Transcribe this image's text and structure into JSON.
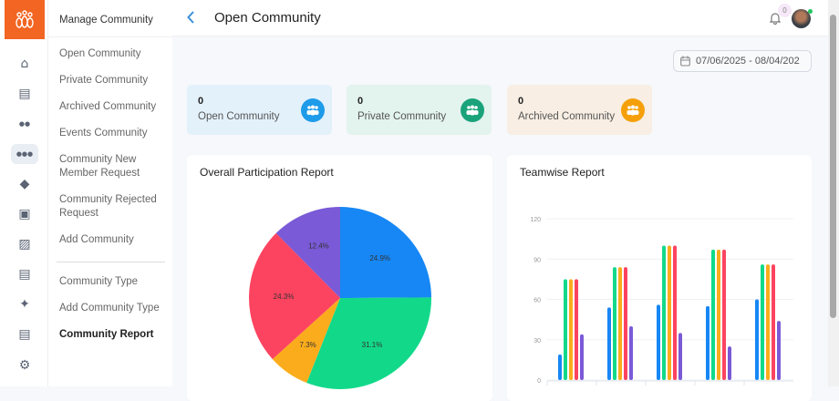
{
  "sidebar": {
    "header": "Manage Community",
    "items": [
      "Open Community",
      "Private Community",
      "Archived Community",
      "Events Community",
      "Community New Member Request",
      "Community Rejected Request",
      "Add Community",
      "Community Type",
      "Add Community Type",
      "Community Report"
    ],
    "active": "Community Report"
  },
  "rail": [
    "home-icon",
    "newspaper-icon",
    "users-icon",
    "community-icon",
    "tag-icon",
    "calendar-icon",
    "briefcase-icon",
    "store-icon",
    "puzzle-icon",
    "report-icon",
    "gear-icon"
  ],
  "header": {
    "title": "Open Community",
    "notification_count": "0"
  },
  "date_range": "07/06/2025 - 08/04/202",
  "stats": [
    {
      "count": "0",
      "label": "Open Community",
      "color": "#1e9be9",
      "bg": "#e3f1fb"
    },
    {
      "count": "0",
      "label": "Private Community",
      "color": "#1aa37a",
      "bg": "#e3f3ee"
    },
    {
      "count": "0",
      "label": "Archived Community",
      "color": "#f5a00a",
      "bg": "#f8eee3"
    }
  ],
  "chart_data": [
    {
      "type": "pie",
      "title": "Overall Participation Report",
      "values": [
        24.9,
        31.1,
        7.3,
        24.3,
        12.4
      ],
      "labels": [
        "24.9%",
        "31.1%",
        "7.3%",
        "24.3%",
        "12.4%"
      ],
      "colors": [
        "#1687f5",
        "#12d98a",
        "#fbac1c",
        "#fc4460",
        "#7a5ad6"
      ]
    },
    {
      "type": "bar",
      "title": "Teamwise Report",
      "ylim": [
        0,
        120
      ],
      "yticks": [
        "0",
        "30",
        "60",
        "90",
        "120"
      ],
      "grid": true,
      "colors": [
        "#1687f5",
        "#12d98a",
        "#fbac1c",
        "#fc4460",
        "#7a5ad6"
      ],
      "groups": [
        [
          19,
          75,
          75,
          75,
          34
        ],
        [
          54,
          84,
          84,
          84,
          40
        ],
        [
          56,
          100,
          100,
          100,
          35
        ],
        [
          55,
          97,
          97,
          97,
          25
        ],
        [
          60,
          86,
          86,
          86,
          44
        ]
      ]
    }
  ]
}
